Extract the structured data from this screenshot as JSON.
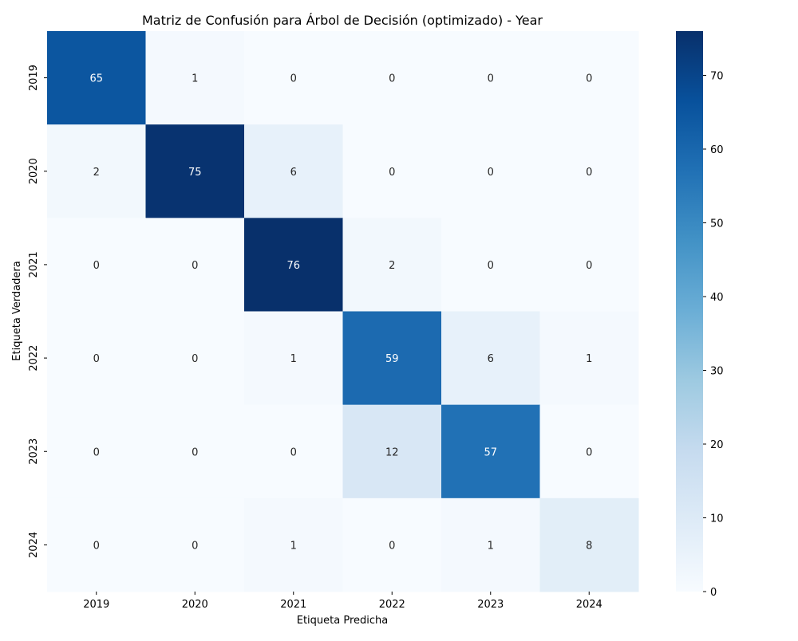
{
  "chart_data": {
    "type": "heatmap",
    "title": "Matriz de Confusión para Árbol de Decisión (optimizado) - Year",
    "xlabel": "Etiqueta Predicha",
    "ylabel": "Etiqueta Verdadera",
    "x_categories": [
      "2019",
      "2020",
      "2021",
      "2022",
      "2023",
      "2024"
    ],
    "y_categories": [
      "2019",
      "2020",
      "2021",
      "2022",
      "2023",
      "2024"
    ],
    "matrix": [
      [
        65,
        1,
        0,
        0,
        0,
        0
      ],
      [
        2,
        75,
        6,
        0,
        0,
        0
      ],
      [
        0,
        0,
        76,
        2,
        0,
        0
      ],
      [
        0,
        0,
        1,
        59,
        6,
        1
      ],
      [
        0,
        0,
        0,
        12,
        57,
        0
      ],
      [
        0,
        0,
        1,
        0,
        1,
        8
      ]
    ],
    "colorbar": {
      "range": [
        0,
        76
      ],
      "ticks": [
        0,
        10,
        20,
        30,
        40,
        50,
        60,
        70
      ],
      "colormap": "Blues",
      "low_color": "#f7fbff",
      "high_color": "#08306b"
    },
    "grid": false,
    "legend": "colorbar-right"
  }
}
